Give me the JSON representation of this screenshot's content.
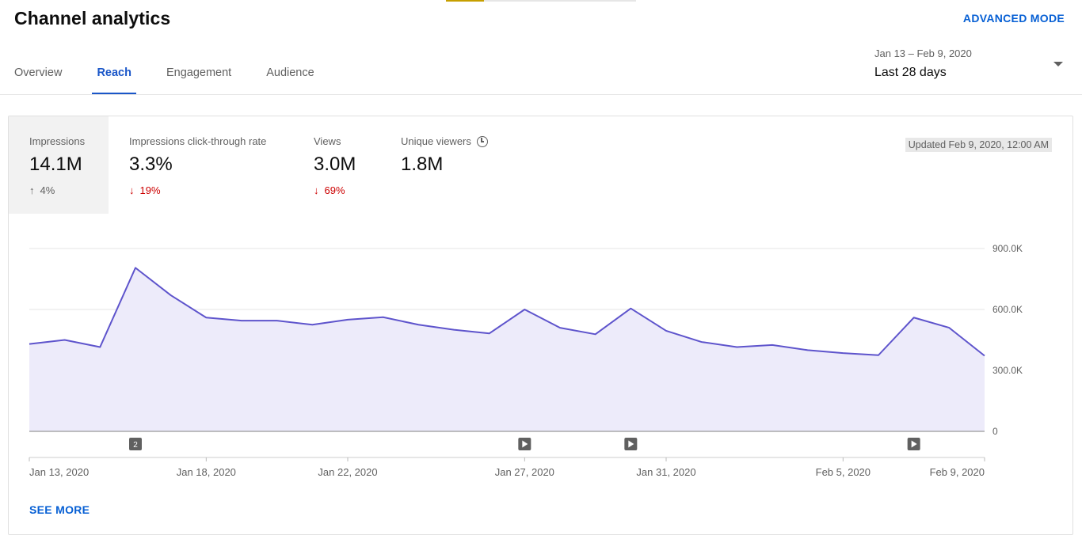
{
  "header": {
    "title": "Channel analytics",
    "advanced_mode": "ADVANCED MODE"
  },
  "tabs": [
    {
      "label": "Overview",
      "active": false
    },
    {
      "label": "Reach",
      "active": true
    },
    {
      "label": "Engagement",
      "active": false
    },
    {
      "label": "Audience",
      "active": false
    }
  ],
  "date_picker": {
    "range": "Jan 13 – Feb 9, 2020",
    "preset": "Last 28 days"
  },
  "metrics": [
    {
      "label": "Impressions",
      "value": "14.1M",
      "delta": "4%",
      "direction": "up",
      "selected": true
    },
    {
      "label": "Impressions click-through rate",
      "value": "3.3%",
      "delta": "19%",
      "direction": "down",
      "selected": false
    },
    {
      "label": "Views",
      "value": "3.0M",
      "delta": "69%",
      "direction": "down",
      "selected": false
    },
    {
      "label": "Unique viewers",
      "value": "1.8M",
      "delta": "",
      "direction": "",
      "selected": false
    }
  ],
  "updated": "Updated Feb 9, 2020, 12:00 AM",
  "see_more": "SEE MORE",
  "colors": {
    "line": "#5e54cc",
    "area": "#edebfa",
    "accent": "#065fd4",
    "negative": "#cc0000"
  },
  "chart_data": {
    "type": "area",
    "x": [
      "Jan 13",
      "Jan 14",
      "Jan 15",
      "Jan 16",
      "Jan 17",
      "Jan 18",
      "Jan 19",
      "Jan 20",
      "Jan 21",
      "Jan 22",
      "Jan 23",
      "Jan 24",
      "Jan 25",
      "Jan 26",
      "Jan 27",
      "Jan 28",
      "Jan 29",
      "Jan 30",
      "Jan 31",
      "Feb 1",
      "Feb 2",
      "Feb 3",
      "Feb 4",
      "Feb 5",
      "Feb 6",
      "Feb 7",
      "Feb 8",
      "Feb 9"
    ],
    "series": [
      {
        "values": [
          430000,
          450000,
          415000,
          805000,
          670000,
          560000,
          545000,
          545000,
          525000,
          550000,
          562000,
          525000,
          500000,
          482000,
          600000,
          510000,
          478000,
          605000,
          495000,
          440000,
          415000,
          425000,
          400000,
          385000,
          375000,
          560000,
          510000,
          372000
        ]
      }
    ],
    "y_ticks": [
      "900.0K",
      "600.0K",
      "300.0K",
      "0"
    ],
    "y_tick_values": [
      900000,
      600000,
      300000,
      0
    ],
    "ylim": [
      0,
      900000
    ],
    "x_tick_labels": [
      "Jan 13, 2020",
      "Jan 18, 2020",
      "Jan 22, 2020",
      "Jan 27, 2020",
      "Jan 31, 2020",
      "Feb 5, 2020",
      "Feb 9, 2020"
    ],
    "x_tick_indices": [
      0,
      5,
      9,
      14,
      18,
      23,
      27
    ],
    "markers": [
      {
        "index": 3,
        "label": "2",
        "kind": "count"
      },
      {
        "index": 14,
        "label": "",
        "kind": "video"
      },
      {
        "index": 17,
        "label": "",
        "kind": "video"
      },
      {
        "index": 25,
        "label": "",
        "kind": "video"
      }
    ],
    "grid": true
  }
}
